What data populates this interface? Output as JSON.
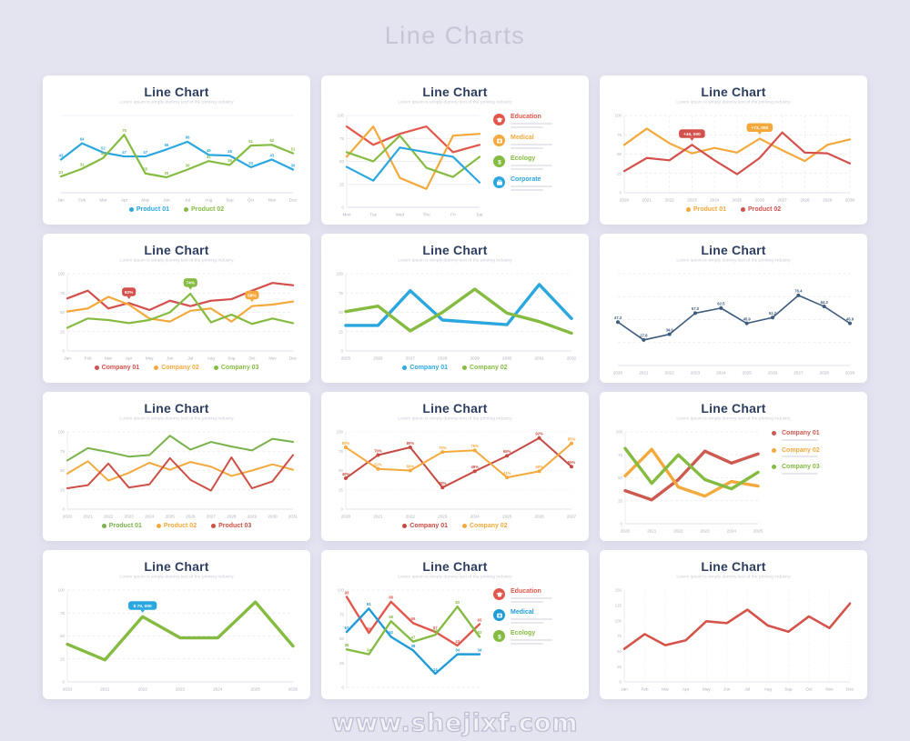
{
  "page": {
    "title": "Line Charts",
    "watermark": "www.shejixf.com"
  },
  "chart_data": [
    {
      "type": "line",
      "title": "Line Chart",
      "subtitle": "Lorem ipsum is simply dummy text of the printing industry",
      "x_labels": [
        "Jan",
        "Feb",
        "Mar",
        "Apr",
        "May",
        "Jun",
        "Jul",
        "Aug",
        "Sep",
        "Oct",
        "Nov",
        "Dec"
      ],
      "y_ticks": [],
      "ylim": [
        0,
        100
      ],
      "grid": {
        "h": "solid",
        "values": [
          0,
          100
        ]
      },
      "series": [
        {
          "name": "Product 01",
          "color": "#2ba7df",
          "width": 2.2,
          "point_labels": true,
          "values": [
            43,
            64,
            52,
            47,
            47,
            56,
            66,
            49,
            48,
            33,
            43,
            30
          ]
        },
        {
          "name": "Product 02",
          "color": "#85bb41",
          "width": 2.2,
          "point_labels": true,
          "values": [
            21,
            31,
            45,
            75,
            25,
            20,
            30,
            41,
            36,
            61,
            62,
            51
          ]
        }
      ],
      "badges": [],
      "legend": {
        "position": "bottom",
        "icons": false,
        "items": [
          {
            "label": "Product 01",
            "color": "#2ba7df"
          },
          {
            "label": "Product 02",
            "color": "#85bb41"
          }
        ]
      }
    },
    {
      "type": "line",
      "title": "Line Chart",
      "subtitle": "Lorem ipsum is simply dummy text of the printing industry",
      "x_labels": [
        "Mon",
        "Tue",
        "Wed",
        "Thu",
        "Fri",
        "Sat"
      ],
      "y_ticks": [
        100,
        75,
        50,
        25,
        0
      ],
      "ylim": [
        0,
        100
      ],
      "grid": {
        "h": "solid"
      },
      "series": [
        {
          "name": "Education",
          "color": "#e2574c",
          "width": 2.2,
          "values": [
            88,
            68,
            80,
            88,
            60,
            68
          ]
        },
        {
          "name": "Medical",
          "color": "#f4a93c",
          "width": 2.2,
          "values": [
            55,
            88,
            32,
            20,
            78,
            80
          ]
        },
        {
          "name": "Ecology",
          "color": "#85bb41",
          "width": 2.2,
          "values": [
            60,
            50,
            78,
            43,
            33,
            55
          ]
        },
        {
          "name": "Corporate",
          "color": "#2ba7df",
          "width": 2.2,
          "values": [
            44,
            29,
            65,
            60,
            55,
            27
          ]
        }
      ],
      "badges": [],
      "legend": {
        "position": "right",
        "icons": true,
        "items": [
          {
            "label": "Education",
            "color": "#e2574c",
            "icon": "education"
          },
          {
            "label": "Medical",
            "color": "#f4a93c",
            "icon": "medical"
          },
          {
            "label": "Ecology",
            "color": "#85bb41",
            "icon": "ecology"
          },
          {
            "label": "Corporate",
            "color": "#2ba7df",
            "icon": "corporate"
          }
        ]
      }
    },
    {
      "type": "line",
      "title": "Line Chart",
      "subtitle": "Lorem ipsum is simply dummy text of the printing industry",
      "x_labels": [
        "2020",
        "2021",
        "2022",
        "2023",
        "2024",
        "2025",
        "2026",
        "2027",
        "2028",
        "2029",
        "2030"
      ],
      "y_ticks": [
        100,
        75,
        50,
        25,
        0
      ],
      "ylim": [
        0,
        100
      ],
      "grid": {
        "h": "dashed",
        "v": "dashed"
      },
      "series": [
        {
          "name": "Product 01",
          "color": "#f4a93c",
          "width": 2.2,
          "values": [
            62,
            83,
            64,
            51,
            58,
            52,
            70,
            55,
            41,
            62,
            69
          ]
        },
        {
          "name": "Product 02",
          "color": "#d4504c",
          "width": 2.2,
          "values": [
            28,
            45,
            42,
            62,
            42,
            24,
            45,
            78,
            52,
            51,
            38
          ]
        }
      ],
      "badges": [
        {
          "si": 1,
          "pi": 3,
          "text": "+46, 000",
          "color": "#d4504c"
        },
        {
          "si": 0,
          "pi": 6,
          "text": "+73, 000",
          "color": "#f4a93c"
        }
      ],
      "legend": {
        "position": "bottom",
        "icons": false,
        "items": [
          {
            "label": "Product 01",
            "color": "#f4a93c"
          },
          {
            "label": "Product 02",
            "color": "#d4504c"
          }
        ]
      }
    },
    {
      "type": "line",
      "title": "Line Chart",
      "subtitle": "Lorem ipsum is simply dummy text of the printing industry",
      "x_labels": [
        "Jan",
        "Feb",
        "Mar",
        "Apr",
        "May",
        "Jun",
        "Jul",
        "Aug",
        "Sep",
        "Oct",
        "Nov",
        "Dec"
      ],
      "y_ticks": [
        100,
        75,
        50,
        25,
        0
      ],
      "ylim": [
        0,
        100
      ],
      "grid": {
        "h": "dashed"
      },
      "series": [
        {
          "name": "Company 01",
          "color": "#d4504c",
          "width": 2.2,
          "values": [
            68,
            78,
            55,
            62,
            53,
            65,
            58,
            65,
            67,
            78,
            88,
            85
          ]
        },
        {
          "name": "Company 02",
          "color": "#f4a93c",
          "width": 2.2,
          "values": [
            51,
            55,
            70,
            60,
            42,
            38,
            52,
            55,
            38,
            58,
            60,
            64
          ]
        },
        {
          "name": "Company 03",
          "color": "#85bb41",
          "width": 2.2,
          "values": [
            30,
            42,
            40,
            36,
            40,
            50,
            74,
            37,
            47,
            35,
            42,
            36
          ]
        }
      ],
      "badges": [
        {
          "si": 0,
          "pi": 3,
          "text": "62%",
          "color": "#d4504c"
        },
        {
          "si": 2,
          "pi": 6,
          "text": "74%",
          "color": "#85bb41"
        },
        {
          "si": 1,
          "pi": 9,
          "text": "58%",
          "color": "#f4a93c"
        }
      ],
      "legend": {
        "position": "bottom",
        "icons": false,
        "items": [
          {
            "label": "Company 01",
            "color": "#d4504c"
          },
          {
            "label": "Company 02",
            "color": "#f4a93c"
          },
          {
            "label": "Company 03",
            "color": "#85bb41"
          }
        ]
      }
    },
    {
      "type": "line",
      "title": "Line Chart",
      "subtitle": "Lorem ipsum is simply dummy text of the printing industry",
      "x_labels": [
        "2025",
        "2026",
        "2027",
        "2028",
        "2029",
        "2030",
        "2031",
        "2032"
      ],
      "y_ticks": [
        100,
        75,
        50,
        25,
        0
      ],
      "ylim": [
        0,
        100
      ],
      "grid": {
        "h": "dashed"
      },
      "series": [
        {
          "name": "Company 01",
          "color": "#2ba7df",
          "width": 3.4,
          "values": [
            33,
            33,
            78,
            40,
            37,
            34,
            86,
            42
          ]
        },
        {
          "name": "Company 02",
          "color": "#85bb41",
          "width": 3.4,
          "values": [
            51,
            58,
            26,
            50,
            80,
            49,
            38,
            23
          ]
        }
      ],
      "badges": [],
      "legend": {
        "position": "bottom",
        "icons": false,
        "items": [
          {
            "label": "Company 01",
            "color": "#2ba7df"
          },
          {
            "label": "Company 02",
            "color": "#85bb41"
          }
        ]
      }
    },
    {
      "type": "line",
      "title": "Line Chart",
      "subtitle": "Lorem ipsum is simply dummy text of the printing industry",
      "x_labels": [
        "2020",
        "2021",
        "2022",
        "2023",
        "2024",
        "2025",
        "2026",
        "2027",
        "2028",
        "2029"
      ],
      "y_ticks": [],
      "ylim": [
        0,
        100
      ],
      "grid": {
        "h": "dashed",
        "values": [
          0,
          25,
          50,
          75,
          100
        ]
      },
      "series": [
        {
          "name": "Series 01",
          "color": "#3d5b7c",
          "width": 1.6,
          "markers": true,
          "point_labels": true,
          "label_decimals": 1,
          "values": [
            47.3,
            27.8,
            34.0,
            57.0,
            62.5,
            45.9,
            52.2,
            76.4,
            64.3,
            45.9
          ]
        }
      ],
      "badges": [],
      "legend": {
        "position": "none",
        "icons": false,
        "items": []
      }
    },
    {
      "type": "line",
      "title": "Line Chart",
      "subtitle": "Lorem ipsum is simply dummy text of the printing industry",
      "x_labels": [
        "2020",
        "2021",
        "2022",
        "2023",
        "2024",
        "2025",
        "2026",
        "2027",
        "2028",
        "2029",
        "2030",
        "2031"
      ],
      "y_ticks": [
        100,
        75,
        50,
        25,
        0
      ],
      "ylim": [
        0,
        100
      ],
      "grid": {
        "h": "dashed"
      },
      "series": [
        {
          "name": "Product 01",
          "color": "#79b14a",
          "width": 2,
          "values": [
            63,
            79,
            74,
            68,
            70,
            95,
            77,
            87,
            81,
            76,
            91,
            87
          ]
        },
        {
          "name": "Product 02",
          "color": "#f4a93c",
          "width": 2,
          "values": [
            46,
            62,
            37,
            47,
            60,
            51,
            61,
            55,
            43,
            50,
            58,
            51
          ]
        },
        {
          "name": "Product 03",
          "color": "#cd4f45",
          "width": 2,
          "values": [
            27,
            31,
            59,
            28,
            32,
            66,
            38,
            24,
            67,
            27,
            36,
            70
          ]
        }
      ],
      "badges": [],
      "legend": {
        "position": "bottom",
        "icons": false,
        "items": [
          {
            "label": "Product 01",
            "color": "#79b14a"
          },
          {
            "label": "Product 02",
            "color": "#f4a93c"
          },
          {
            "label": "Product 03",
            "color": "#cd4f45"
          }
        ]
      }
    },
    {
      "type": "line",
      "title": "Line Chart",
      "subtitle": "Lorem ipsum is simply dummy text of the printing industry",
      "x_labels": [
        "2020",
        "2021",
        "2022",
        "2023",
        "2024",
        "2025",
        "2026",
        "2027"
      ],
      "y_ticks": [
        100,
        75,
        50,
        25,
        0
      ],
      "ylim": [
        0,
        100
      ],
      "grid": {
        "h": "dotted"
      },
      "series": [
        {
          "name": "Company 01",
          "color": "#c64a42",
          "width": 2,
          "markers": true,
          "point_labels": true,
          "label_suffix": "%",
          "values": [
            40,
            70,
            80,
            28,
            49,
            69,
            92,
            55
          ]
        },
        {
          "name": "Company 02",
          "color": "#f4a93c",
          "width": 2,
          "markers": true,
          "point_labels": true,
          "label_suffix": "%",
          "values": [
            80,
            52,
            50,
            74,
            76,
            41,
            49,
            85
          ]
        }
      ],
      "badges": [],
      "legend": {
        "position": "bottom",
        "icons": false,
        "items": [
          {
            "label": "Company 01",
            "color": "#c64a42"
          },
          {
            "label": "Company 02",
            "color": "#f4a93c"
          }
        ]
      }
    },
    {
      "type": "line",
      "title": "Line Chart",
      "subtitle": "Lorem ipsum is simply dummy text of the printing industry",
      "x_labels": [
        "2020",
        "2021",
        "2022",
        "2023",
        "2024",
        "2025"
      ],
      "y_ticks": [
        100,
        75,
        50,
        25,
        0
      ],
      "ylim": [
        0,
        100
      ],
      "grid": {
        "h": "dashed"
      },
      "series": [
        {
          "name": "Company 01",
          "color": "#cd5a50",
          "width": 3.4,
          "values": [
            36,
            26,
            48,
            79,
            66,
            76
          ]
        },
        {
          "name": "Company 02",
          "color": "#f4a93c",
          "width": 3.4,
          "values": [
            52,
            81,
            40,
            30,
            46,
            41
          ]
        },
        {
          "name": "Company 03",
          "color": "#85bb41",
          "width": 3.4,
          "values": [
            82,
            44,
            75,
            48,
            38,
            56
          ]
        }
      ],
      "badges": [],
      "legend": {
        "position": "right",
        "icons": false,
        "items": [
          {
            "label": "Company 01",
            "color": "#cd5a50"
          },
          {
            "label": "Company 02",
            "color": "#f4a93c"
          },
          {
            "label": "Company 03",
            "color": "#85bb41"
          }
        ]
      }
    },
    {
      "type": "line",
      "title": "Line Chart",
      "subtitle": "Lorem ipsum is simply dummy text of the printing industry",
      "x_labels": [
        "2020",
        "2021",
        "2022",
        "2023",
        "2024",
        "2025",
        "2026"
      ],
      "y_ticks": [
        100,
        75,
        50,
        25,
        0
      ],
      "ylim": [
        0,
        100
      ],
      "grid": {
        "h": "dashed"
      },
      "series": [
        {
          "name": "Series 01",
          "color": "#85bb41",
          "width": 3.4,
          "values": [
            41,
            24,
            71,
            48,
            48,
            87,
            39
          ]
        }
      ],
      "badges": [
        {
          "si": 0,
          "pi": 2,
          "text": "$ 70, 000",
          "color": "#2ba7df"
        }
      ],
      "legend": {
        "position": "none",
        "icons": false,
        "items": []
      }
    },
    {
      "type": "line",
      "title": "Line Chart",
      "subtitle": "Lorem ipsum is simply dummy text of the printing industry",
      "x_labels": [],
      "y_ticks": [
        100,
        75,
        50,
        25,
        0
      ],
      "ylim": [
        0,
        100
      ],
      "grid": {
        "h": "dashed",
        "values": [
          0,
          100
        ]
      },
      "series": [
        {
          "name": "Education",
          "color": "#e2574c",
          "width": 2.4,
          "point_labels": true,
          "values": [
            93,
            56,
            88,
            66,
            57,
            43,
            65
          ]
        },
        {
          "name": "Medical",
          "color": "#1f9cd7",
          "width": 2.4,
          "point_labels": true,
          "values": [
            57,
            81,
            52,
            38,
            14,
            34,
            34
          ]
        },
        {
          "name": "Ecology",
          "color": "#85bb41",
          "width": 2.4,
          "point_labels": true,
          "values": [
            39,
            34,
            68,
            47,
            54,
            83,
            52
          ]
        }
      ],
      "badges": [],
      "legend": {
        "position": "right",
        "icons": true,
        "items": [
          {
            "label": "Education",
            "color": "#e2574c",
            "icon": "education"
          },
          {
            "label": "Medical",
            "color": "#1f9cd7",
            "icon": "medical"
          },
          {
            "label": "Ecology",
            "color": "#85bb41",
            "icon": "ecology"
          }
        ]
      }
    },
    {
      "type": "line",
      "title": "Line Chart",
      "subtitle": "Lorem ipsum is simply dummy text of the printing industry",
      "x_labels": [
        "Jan",
        "Feb",
        "Mar",
        "Apr",
        "May",
        "Jun",
        "Jul",
        "Aug",
        "Sep",
        "Oct",
        "Nov",
        "Dec"
      ],
      "y_ticks": [
        150,
        125,
        100,
        75,
        50,
        25,
        0
      ],
      "ylim": [
        0,
        150
      ],
      "grid": {
        "h": "none",
        "v": "dotted"
      },
      "series": [
        {
          "name": "Series 01",
          "color": "#d4544c",
          "width": 2.6,
          "values": [
            54,
            78,
            60,
            68,
            99,
            96,
            118,
            92,
            82,
            107,
            88,
            128
          ]
        }
      ],
      "badges": [],
      "legend": {
        "position": "none",
        "icons": false,
        "items": []
      }
    }
  ]
}
